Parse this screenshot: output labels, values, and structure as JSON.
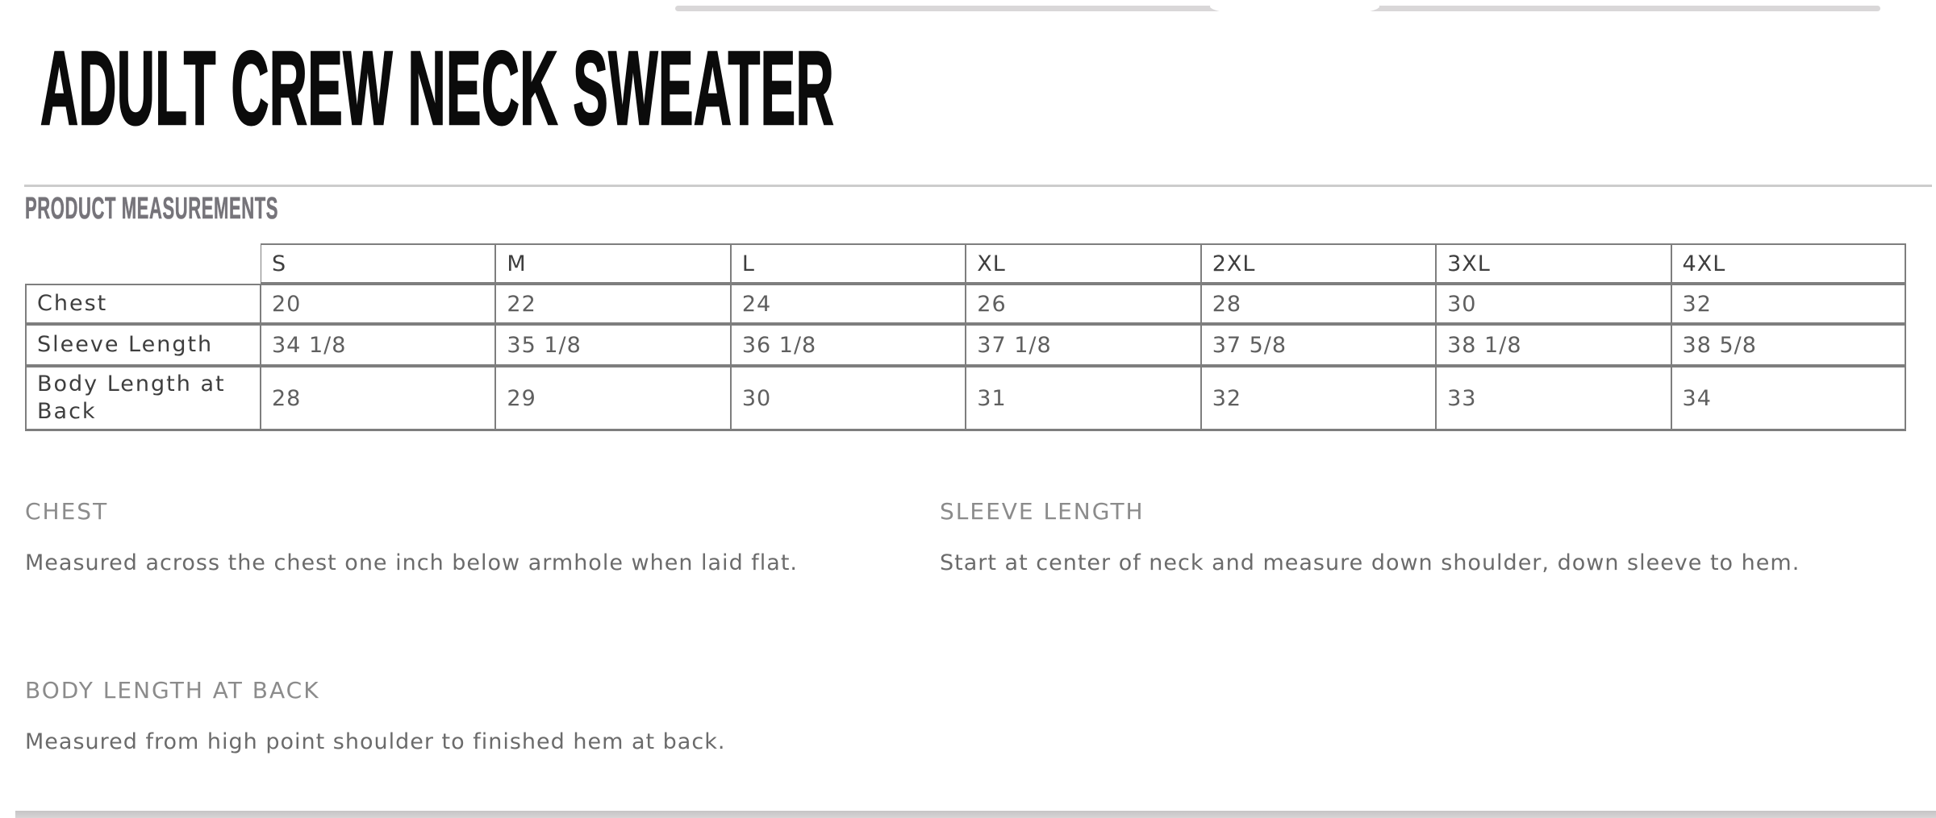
{
  "page": {
    "title": "ADULT CREW NECK SWEATER",
    "section_title": "PRODUCT MEASUREMENTS"
  },
  "measurements_table": {
    "sizes": [
      "S",
      "M",
      "L",
      "XL",
      "2XL",
      "3XL",
      "4XL"
    ],
    "rows": [
      {
        "label": "Chest",
        "values": [
          "20",
          "22",
          "24",
          "26",
          "28",
          "30",
          "32"
        ]
      },
      {
        "label": "Sleeve Length",
        "values": [
          "34 1/8",
          "35 1/8",
          "36 1/8",
          "37 1/8",
          "37 5/8",
          "38 1/8",
          "38 5/8"
        ]
      },
      {
        "label": "Body Length at Back",
        "values": [
          "28",
          "29",
          "30",
          "31",
          "32",
          "33",
          "34"
        ]
      }
    ]
  },
  "definitions": [
    {
      "heading": "CHEST",
      "text": "Measured across the chest one inch below armhole when laid flat."
    },
    {
      "heading": "SLEEVE LENGTH",
      "text": "Start at center of neck and measure down shoulder, down sleeve to hem."
    },
    {
      "heading": "BODY LENGTH AT BACK",
      "text": "Measured from high point shoulder to finished hem at back."
    }
  ],
  "colors": {
    "title_text": "#0b0b0b",
    "section_title_text": "#76747a",
    "table_border": "#7e7e7e",
    "table_label_text": "#3e3e3e",
    "table_value_text": "#5f5f5f",
    "definition_heading_text": "#8b8b8b",
    "definition_body_text": "#6b6b6b",
    "divider": "#cccccc",
    "edge_bar": "#d9d7d8"
  }
}
